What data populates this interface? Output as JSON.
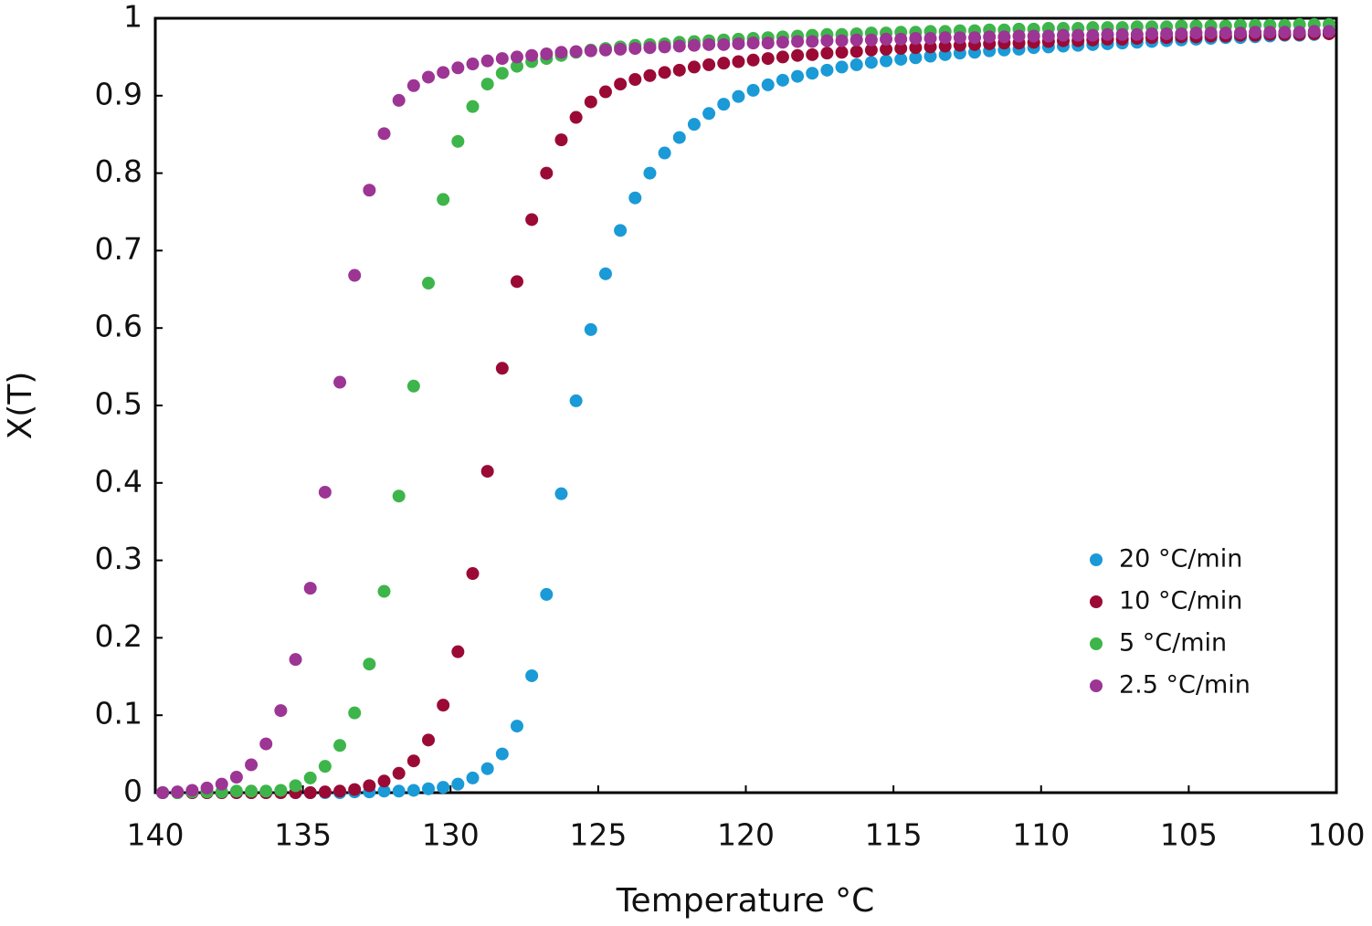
{
  "chart_data": {
    "type": "scatter",
    "x_label": "Temperature °C",
    "y_label": "X(T)",
    "xlim": [
      140,
      100
    ],
    "ylim": [
      0,
      1
    ],
    "xticks": [
      140,
      135,
      130,
      125,
      120,
      115,
      110,
      105,
      100
    ],
    "yticks": [
      0,
      0.1,
      0.2,
      0.3,
      0.4,
      0.5,
      0.6,
      0.7,
      0.8,
      0.9,
      1
    ],
    "grid": false,
    "legend": "lower right",
    "x": [
      139.75,
      139.25,
      138.75,
      138.25,
      137.75,
      137.25,
      136.75,
      136.25,
      135.75,
      135.25,
      134.75,
      134.25,
      133.75,
      133.25,
      132.75,
      132.25,
      131.75,
      131.25,
      130.75,
      130.25,
      129.75,
      129.25,
      128.75,
      128.25,
      127.75,
      127.25,
      126.75,
      126.25,
      125.75,
      125.25,
      124.75,
      124.25,
      123.75,
      123.25,
      122.75,
      122.25,
      121.75,
      121.25,
      120.75,
      120.25,
      119.75,
      119.25,
      118.75,
      118.25,
      117.75,
      117.25,
      116.75,
      116.25,
      115.75,
      115.25,
      114.75,
      114.25,
      113.75,
      113.25,
      112.75,
      112.25,
      111.75,
      111.25,
      110.75,
      110.25,
      109.75,
      109.25,
      108.75,
      108.25,
      107.75,
      107.25,
      106.75,
      106.25,
      105.75,
      105.25,
      104.75,
      104.25,
      103.75,
      103.25,
      102.75,
      102.25,
      101.75,
      101.25,
      100.75,
      100.25
    ],
    "series": [
      {
        "name": "20 °C/min",
        "color": "#1a9ad6",
        "values": [
          0,
          0,
          0,
          0,
          0,
          0,
          0,
          0,
          0,
          0,
          0,
          0,
          0,
          0.001,
          0.001,
          0.002,
          0.002,
          0.003,
          0.005,
          0.007,
          0.011,
          0.019,
          0.031,
          0.05,
          0.086,
          0.151,
          0.256,
          0.386,
          0.506,
          0.598,
          0.67,
          0.726,
          0.768,
          0.8,
          0.826,
          0.846,
          0.863,
          0.877,
          0.889,
          0.899,
          0.907,
          0.914,
          0.92,
          0.925,
          0.929,
          0.933,
          0.937,
          0.94,
          0.943,
          0.945,
          0.947,
          0.949,
          0.951,
          0.953,
          0.955,
          0.956,
          0.958,
          0.959,
          0.96,
          0.962,
          0.963,
          0.964,
          0.965,
          0.966,
          0.967,
          0.968,
          0.969,
          0.97,
          0.971,
          0.972,
          0.973,
          0.974,
          0.975,
          0.975,
          0.976,
          0.977,
          0.978,
          0.978,
          0.979,
          0.98
        ]
      },
      {
        "name": "10 °C/min",
        "color": "#9b0a35",
        "values": [
          0,
          0,
          0,
          0,
          0,
          0,
          0,
          0,
          0,
          0,
          0,
          0.001,
          0.002,
          0.004,
          0.009,
          0.015,
          0.025,
          0.041,
          0.068,
          0.113,
          0.182,
          0.283,
          0.415,
          0.548,
          0.66,
          0.74,
          0.8,
          0.843,
          0.872,
          0.892,
          0.905,
          0.915,
          0.921,
          0.926,
          0.93,
          0.933,
          0.937,
          0.94,
          0.942,
          0.944,
          0.946,
          0.948,
          0.95,
          0.952,
          0.953,
          0.955,
          0.956,
          0.957,
          0.959,
          0.96,
          0.961,
          0.962,
          0.963,
          0.964,
          0.965,
          0.966,
          0.967,
          0.968,
          0.968,
          0.969,
          0.97,
          0.971,
          0.971,
          0.972,
          0.973,
          0.973,
          0.974,
          0.975,
          0.975,
          0.976,
          0.976,
          0.977,
          0.977,
          0.978,
          0.978,
          0.979,
          0.979,
          0.979,
          0.98,
          0.98
        ]
      },
      {
        "name": "5 °C/min",
        "color": "#3db54a",
        "values": [
          0,
          0,
          0.001,
          0.001,
          0.001,
          0.002,
          0.002,
          0.002,
          0.003,
          0.009,
          0.019,
          0.034,
          0.061,
          0.103,
          0.166,
          0.26,
          0.383,
          0.525,
          0.658,
          0.766,
          0.841,
          0.886,
          0.915,
          0.929,
          0.938,
          0.944,
          0.948,
          0.952,
          0.956,
          0.959,
          0.961,
          0.963,
          0.965,
          0.966,
          0.967,
          0.969,
          0.97,
          0.971,
          0.972,
          0.973,
          0.974,
          0.975,
          0.976,
          0.977,
          0.978,
          0.979,
          0.979,
          0.98,
          0.981,
          0.981,
          0.982,
          0.982,
          0.983,
          0.983,
          0.984,
          0.984,
          0.985,
          0.985,
          0.986,
          0.986,
          0.987,
          0.987,
          0.987,
          0.988,
          0.988,
          0.988,
          0.989,
          0.989,
          0.989,
          0.99,
          0.99,
          0.99,
          0.99,
          0.991,
          0.991,
          0.991,
          0.991,
          0.992,
          0.992,
          0.992
        ]
      },
      {
        "name": "2.5 °C/min",
        "color": "#9c3594",
        "values": [
          0,
          0.001,
          0.003,
          0.006,
          0.011,
          0.02,
          0.036,
          0.063,
          0.106,
          0.172,
          0.264,
          0.388,
          0.53,
          0.668,
          0.778,
          0.851,
          0.894,
          0.913,
          0.924,
          0.93,
          0.936,
          0.941,
          0.945,
          0.948,
          0.95,
          0.952,
          0.954,
          0.956,
          0.957,
          0.958,
          0.959,
          0.96,
          0.961,
          0.962,
          0.963,
          0.964,
          0.965,
          0.966,
          0.966,
          0.967,
          0.968,
          0.968,
          0.969,
          0.97,
          0.97,
          0.971,
          0.971,
          0.972,
          0.972,
          0.973,
          0.973,
          0.974,
          0.974,
          0.975,
          0.975,
          0.975,
          0.976,
          0.976,
          0.977,
          0.977,
          0.977,
          0.978,
          0.978,
          0.978,
          0.979,
          0.979,
          0.979,
          0.98,
          0.98,
          0.98,
          0.981,
          0.981,
          0.981,
          0.981,
          0.982,
          0.982,
          0.982,
          0.982,
          0.983,
          0.983
        ]
      }
    ]
  }
}
